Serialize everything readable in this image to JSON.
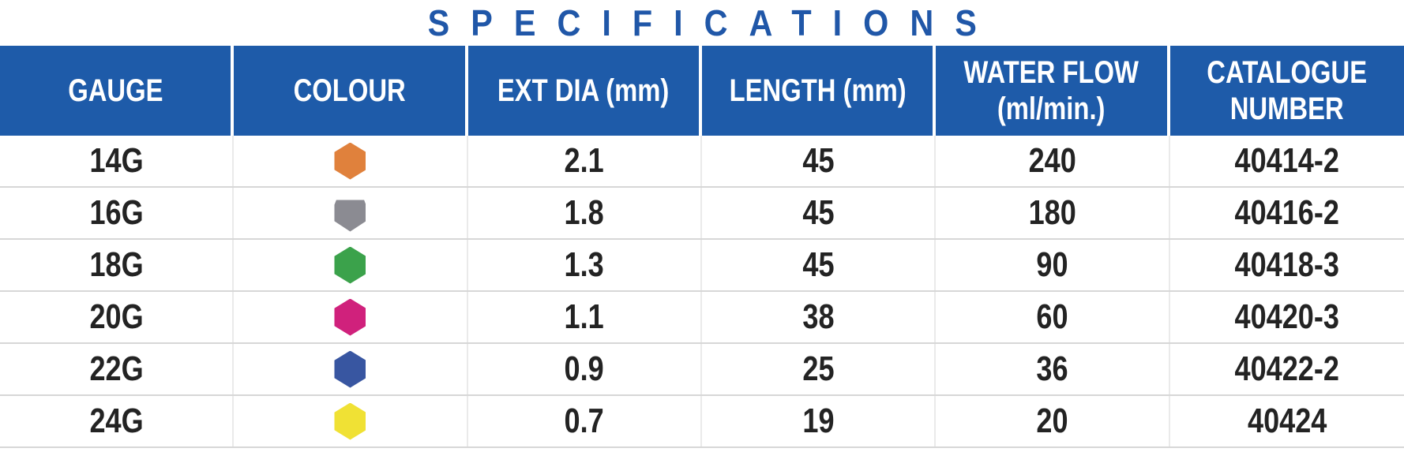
{
  "title": "SPECIFICATIONS",
  "colors": {
    "title_text": "#2057A8",
    "header_bg": "#1E5BA9",
    "header_text": "#FFFFFF",
    "body_text": "#232323",
    "row_separator": "#D7D7D7",
    "column_separator": "#EAEAEA"
  },
  "table": {
    "columns": [
      {
        "key": "gauge",
        "lines": [
          "GAUGE"
        ]
      },
      {
        "key": "colour",
        "lines": [
          "COLOUR"
        ]
      },
      {
        "key": "ext_dia",
        "lines": [
          "EXT DIA (mm)"
        ]
      },
      {
        "key": "length",
        "lines": [
          "LENGTH (mm)"
        ]
      },
      {
        "key": "water_flow",
        "lines": [
          "WATER FLOW",
          "(ml/min.)"
        ]
      },
      {
        "key": "catalogue",
        "lines": [
          "CATALOGUE",
          "NUMBER"
        ]
      }
    ],
    "rows": [
      {
        "gauge": "14G",
        "colour_name": "orange",
        "colour_hex": "#E0813C",
        "swatch_shape": "hexagon",
        "ext_dia": "2.1",
        "length": "45",
        "water_flow": "240",
        "catalogue": "40414-2"
      },
      {
        "gauge": "16G",
        "colour_name": "grey",
        "colour_hex": "#8B8B92",
        "swatch_shape": "hexagon-truncated-top",
        "ext_dia": "1.8",
        "length": "45",
        "water_flow": "180",
        "catalogue": "40416-2"
      },
      {
        "gauge": "18G",
        "colour_name": "green",
        "colour_hex": "#3BA24B",
        "swatch_shape": "hexagon",
        "ext_dia": "1.3",
        "length": "45",
        "water_flow": "90",
        "catalogue": "40418-3"
      },
      {
        "gauge": "20G",
        "colour_name": "pink",
        "colour_hex": "#D0217C",
        "swatch_shape": "hexagon",
        "ext_dia": "1.1",
        "length": "38",
        "water_flow": "60",
        "catalogue": "40420-3"
      },
      {
        "gauge": "22G",
        "colour_name": "blue",
        "colour_hex": "#3856A1",
        "swatch_shape": "hexagon",
        "ext_dia": "0.9",
        "length": "25",
        "water_flow": "36",
        "catalogue": "40422-2"
      },
      {
        "gauge": "24G",
        "colour_name": "yellow",
        "colour_hex": "#F0E134",
        "swatch_shape": "hexagon",
        "ext_dia": "0.7",
        "length": "19",
        "water_flow": "20",
        "catalogue": "40424"
      }
    ]
  }
}
